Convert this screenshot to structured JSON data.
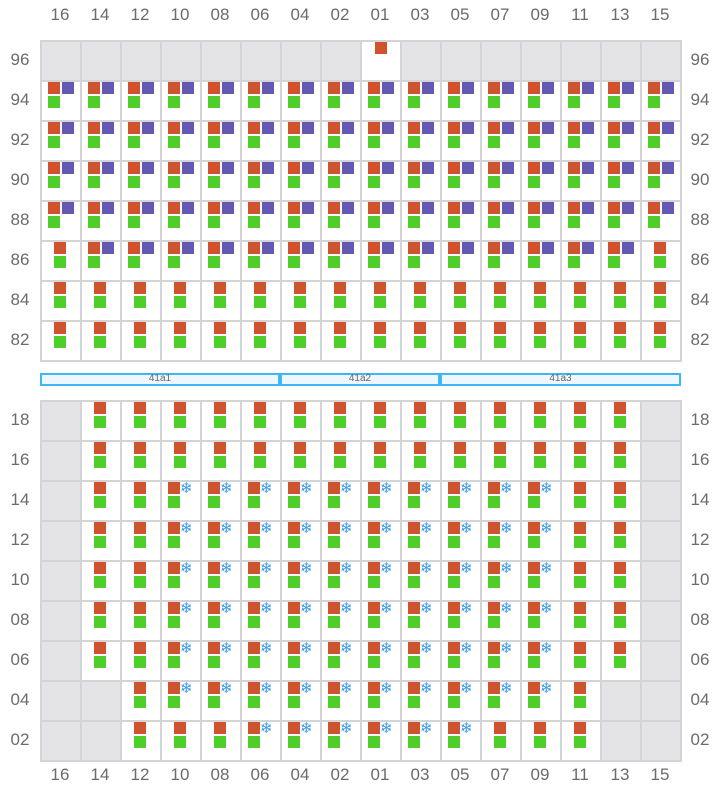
{
  "columns": [
    "16",
    "14",
    "12",
    "10",
    "08",
    "06",
    "04",
    "02",
    "01",
    "03",
    "05",
    "07",
    "09",
    "11",
    "13",
    "15"
  ],
  "legend_codes": {
    "E": "empty",
    "S": "orange-only",
    "G": "orange+green",
    "P": "orange+purple+green",
    "F": "orange+frozen+green"
  },
  "colors": {
    "orange": "#cf532c",
    "green": "#4ecd2b",
    "purple": "#6359b0",
    "snowflake": "#3a9ae8",
    "empty": "#e4e4e7",
    "zone_border": "#3fb7f2"
  },
  "top_grid": {
    "rows": [
      {
        "label": "96",
        "cells": "EEEEEEEESEEEEEEE"
      },
      {
        "label": "94",
        "cells": "PPPPPPPPPPPPPPPP"
      },
      {
        "label": "92",
        "cells": "PPPPPPPPPPPPPPPP"
      },
      {
        "label": "90",
        "cells": "PPPPPPPPPPPPPPPP"
      },
      {
        "label": "88",
        "cells": "PPPPPPPPPPPPPPPP"
      },
      {
        "label": "86",
        "cells": "GPPPPPPPPPPPPPPG"
      },
      {
        "label": "84",
        "cells": "GGGGGGGGGGGGGGGG"
      },
      {
        "label": "82",
        "cells": "GGGGGGGGGGGGGGGG"
      }
    ]
  },
  "zones": [
    {
      "label": "41a1",
      "span": 6
    },
    {
      "label": "41a2",
      "span": 4
    },
    {
      "label": "41a3",
      "span": 6
    }
  ],
  "bottom_grid": {
    "rows": [
      {
        "label": "18",
        "cells": "EGGGGGGGGGGGGGGE"
      },
      {
        "label": "16",
        "cells": "EGGGGGGGGGGGGGGE"
      },
      {
        "label": "14",
        "cells": "EGGFFFFFFFFFFGGE"
      },
      {
        "label": "12",
        "cells": "EGGFFFFFFFFFFGGE"
      },
      {
        "label": "10",
        "cells": "EGGFFFFFFFFFFGGE"
      },
      {
        "label": "08",
        "cells": "EGGFFFFFFFFFFGGE"
      },
      {
        "label": "06",
        "cells": "EGGFFFFFFFFFFGGE"
      },
      {
        "label": "04",
        "cells": "EEGFFFFFFFFFFGEE"
      },
      {
        "label": "02",
        "cells": "EEGGGFFFFFFGGGEE"
      }
    ]
  },
  "snowflake_glyph": "❄"
}
